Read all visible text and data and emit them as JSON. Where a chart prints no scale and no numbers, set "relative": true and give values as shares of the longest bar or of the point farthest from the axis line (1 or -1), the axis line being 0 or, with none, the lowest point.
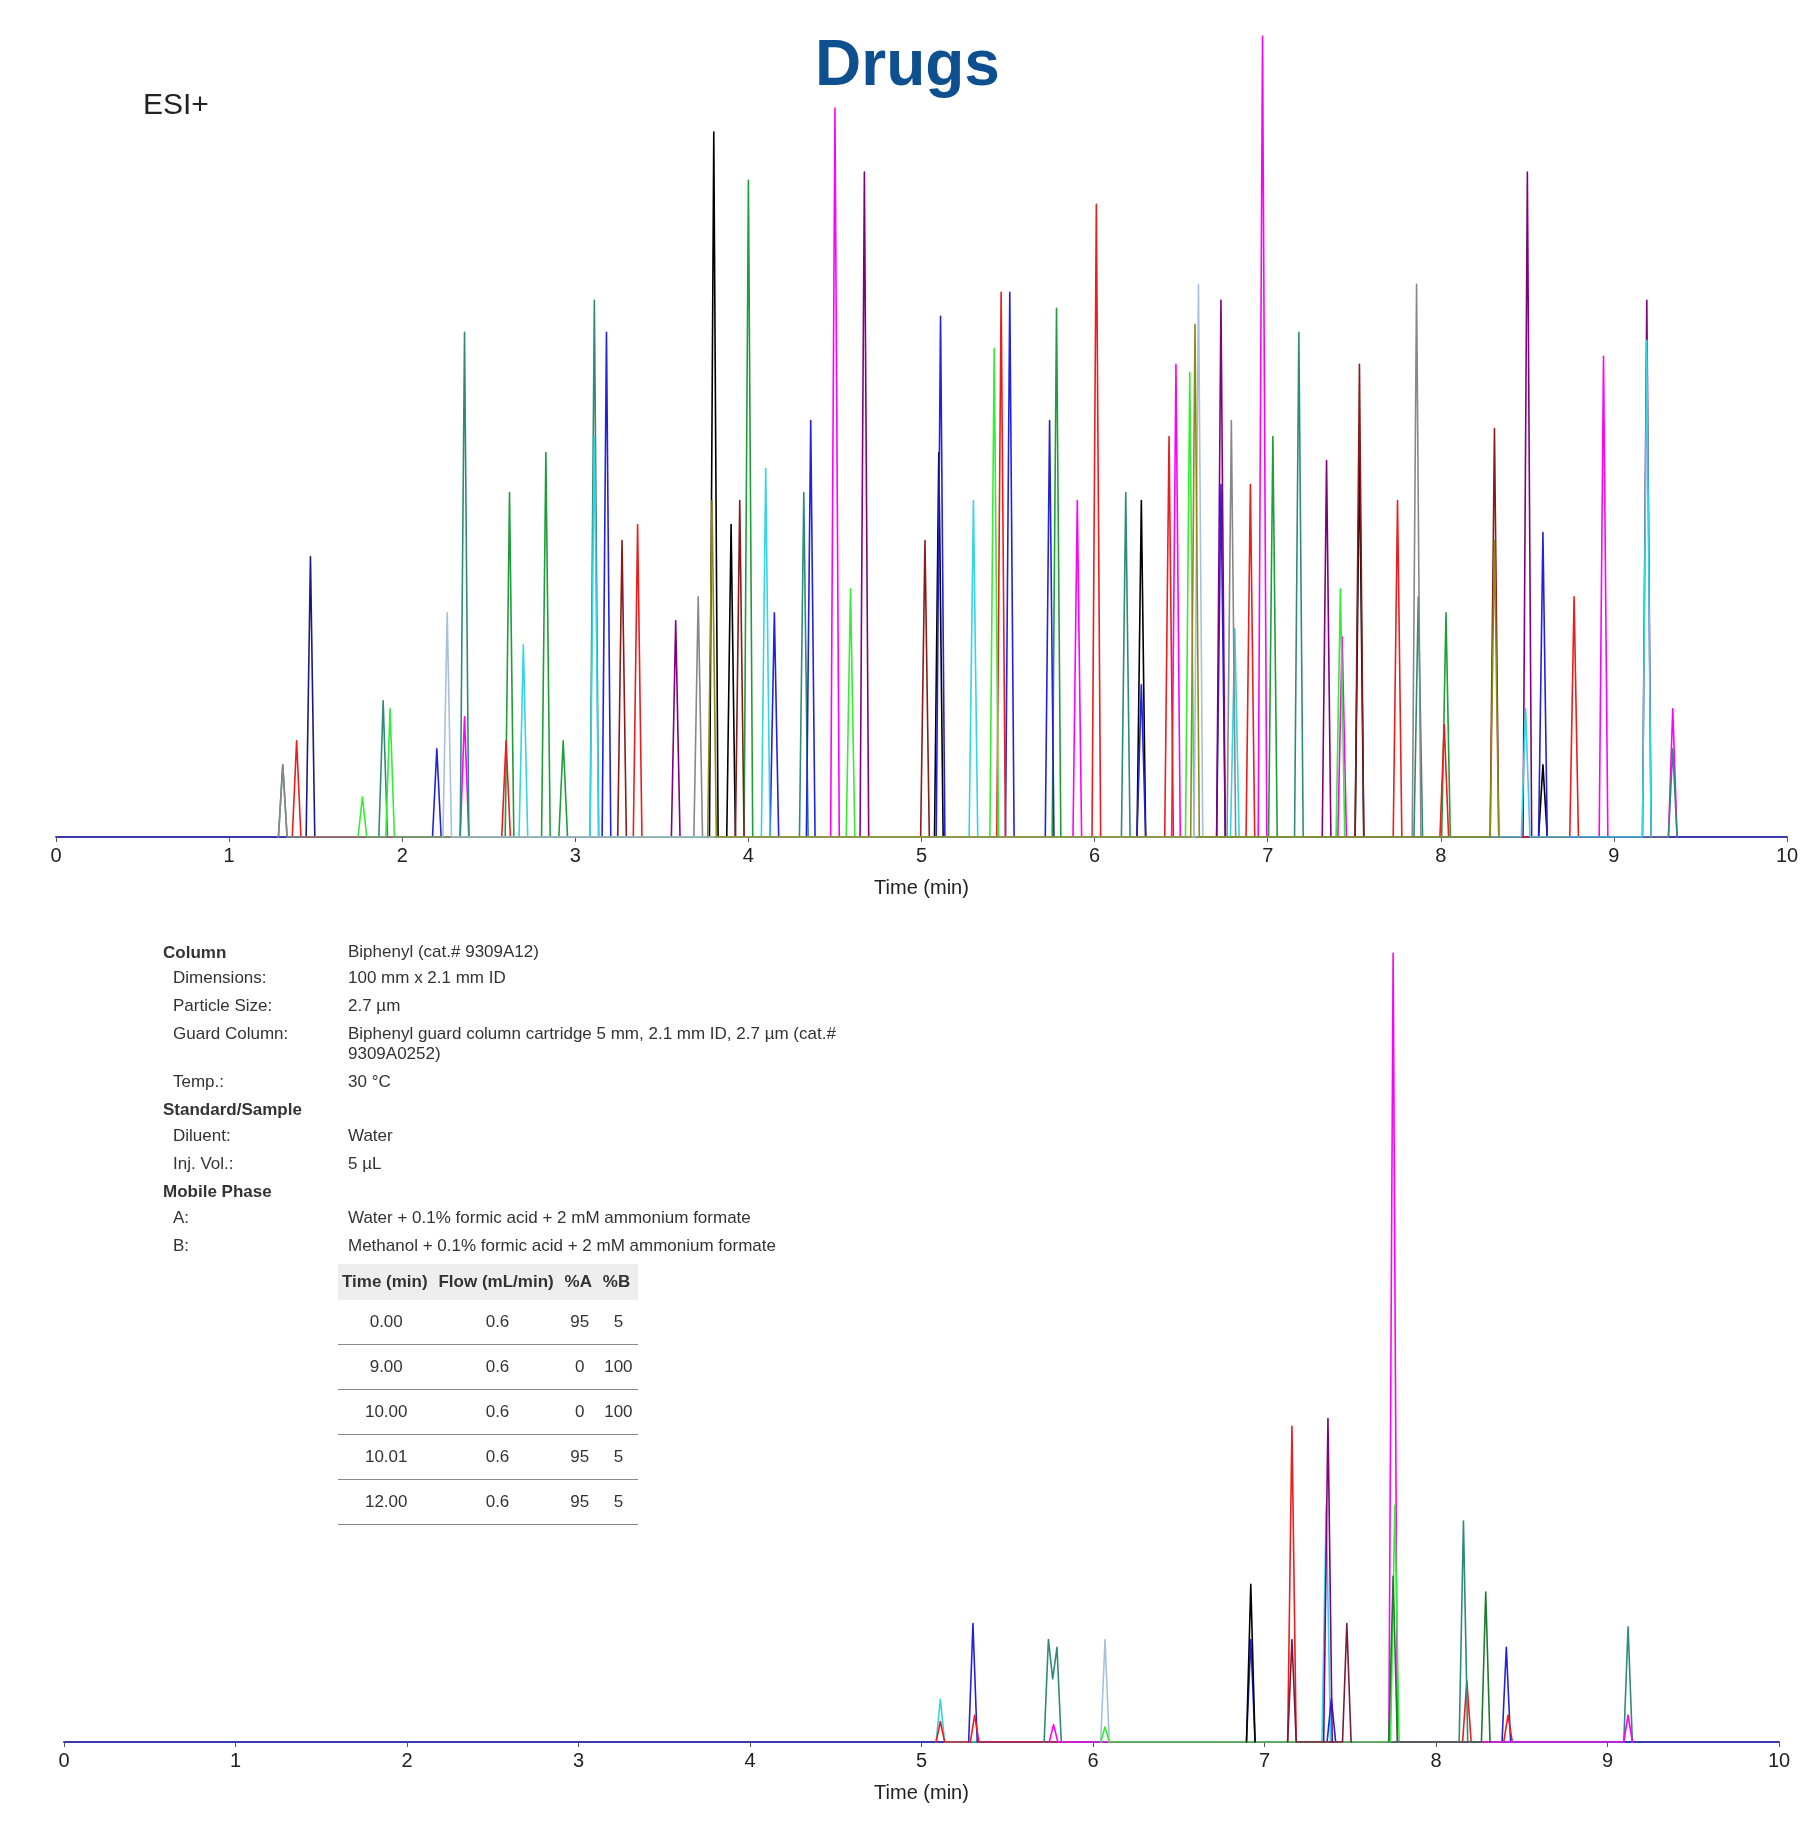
{
  "chart_data": [
    {
      "type": "line",
      "title": "Drugs",
      "relative": true,
      "xlabel": "Time (min)",
      "xlim": [
        0,
        10
      ],
      "xticks": [
        0,
        1,
        2,
        3,
        4,
        5,
        6,
        7,
        8,
        9,
        10
      ],
      "grid": false,
      "marker": "none",
      "line_style": "solid",
      "annotations": [
        "ESI+"
      ],
      "series": [
        {
          "color": "#ff00ff",
          "x": [
            2.335,
            2.36,
            2.385,
            4.475,
            4.5,
            4.525,
            5.875,
            5.9,
            5.925,
            6.445,
            6.47,
            6.495,
            6.945,
            6.97,
            6.995,
            7.405,
            7.43,
            7.455,
            8.915,
            8.94,
            8.965,
            9.315,
            9.34,
            9.365
          ],
          "values": [
            0,
            0.15,
            0,
            0,
            0.91,
            0,
            0,
            0.42,
            0,
            0,
            0.59,
            0,
            0,
            1,
            0,
            0,
            0.25,
            0,
            0,
            0.6,
            0,
            0,
            0.16,
            0
          ]
        },
        {
          "color": "#000000",
          "x": [
            3.775,
            3.8,
            3.825,
            3.875,
            3.9,
            3.925,
            5.075,
            5.1,
            5.125,
            6.245,
            6.27,
            6.295,
            7.505,
            7.53,
            7.555,
            8.565,
            8.59,
            8.615
          ],
          "values": [
            0,
            0.88,
            0,
            0,
            0.39,
            0,
            0,
            0.48,
            0,
            0,
            0.42,
            0,
            0,
            0.48,
            0,
            0,
            0.09,
            0
          ]
        },
        {
          "color": "#1e9e3a",
          "x": [
            2.595,
            2.62,
            2.645,
            2.805,
            2.83,
            2.855,
            2.905,
            2.93,
            2.955,
            3.975,
            4,
            4.025,
            5.755,
            5.78,
            5.805,
            7.005,
            7.03,
            7.055,
            8.005,
            8.03,
            8.055
          ],
          "values": [
            0,
            0.43,
            0,
            0,
            0.48,
            0,
            0,
            0.12,
            0,
            0,
            0.82,
            0,
            0,
            0.66,
            0,
            0,
            0.5,
            0,
            0,
            0.28,
            0
          ]
        },
        {
          "color": "#2e8b7a",
          "x": [
            1.285,
            1.31,
            1.335,
            1.865,
            1.89,
            1.915,
            2.335,
            2.36,
            2.385,
            3.085,
            3.11,
            3.135,
            4.295,
            4.32,
            4.345,
            6.155,
            6.18,
            6.205,
            7.155,
            7.18,
            7.205,
            7.845,
            7.87,
            7.895,
            9.315,
            9.34,
            9.365
          ],
          "values": [
            0,
            0.09,
            0,
            0,
            0.17,
            0,
            0,
            0.63,
            0,
            0,
            0.67,
            0,
            0,
            0.43,
            0,
            0,
            0.43,
            0,
            0,
            0.63,
            0,
            0,
            0.3,
            0,
            0,
            0.11,
            0
          ]
        },
        {
          "color": "#2222dd",
          "x": [
            2.175,
            2.2,
            2.225,
            3.155,
            3.18,
            3.205,
            4.125,
            4.15,
            4.175,
            4.335,
            4.36,
            4.385,
            5.085,
            5.11,
            5.135,
            5.485,
            5.51,
            5.535,
            5.715,
            5.74,
            5.765,
            6.245,
            6.27,
            6.295,
            6.705,
            6.73,
            6.755,
            8.565,
            8.59,
            8.615
          ],
          "values": [
            0,
            0.11,
            0,
            0,
            0.63,
            0,
            0,
            0.28,
            0,
            0,
            0.52,
            0,
            0,
            0.65,
            0,
            0,
            0.68,
            0,
            0,
            0.52,
            0,
            0,
            0.19,
            0,
            0,
            0.44,
            0,
            0,
            0.38,
            0
          ]
        },
        {
          "color": "#1a1a80",
          "x": [
            1.445,
            1.47,
            1.495
          ],
          "values": [
            0,
            0.35,
            0
          ]
        },
        {
          "color": "#800080",
          "x": [
            3.555,
            3.58,
            3.605,
            4.645,
            4.67,
            4.695,
            6.705,
            6.73,
            6.755,
            7.315,
            7.34,
            7.365,
            8.475,
            8.5,
            8.525,
            9.165,
            9.19,
            9.215
          ],
          "values": [
            0,
            0.27,
            0,
            0,
            0.83,
            0,
            0,
            0.67,
            0,
            0,
            0.47,
            0,
            0,
            0.83,
            0,
            0,
            0.67,
            0
          ]
        },
        {
          "color": "#ee1c1c",
          "x": [
            1.365,
            1.39,
            1.415,
            2.575,
            2.6,
            2.625,
            3.335,
            3.36,
            3.385,
            5.435,
            5.46,
            5.485,
            5.985,
            6.01,
            6.035,
            6.405,
            6.43,
            6.455,
            6.875,
            6.9,
            6.925,
            7.725,
            7.75,
            7.775,
            7.995,
            8.02,
            8.045,
            8.745,
            8.77,
            8.795
          ],
          "values": [
            0,
            0.12,
            0,
            0,
            0.12,
            0,
            0,
            0.39,
            0,
            0,
            0.68,
            0,
            0,
            0.79,
            0,
            0,
            0.5,
            0,
            0,
            0.44,
            0,
            0,
            0.42,
            0,
            0,
            0.14,
            0,
            0,
            0.3,
            0
          ]
        },
        {
          "color": "#8b1a1a",
          "x": [
            3.245,
            3.27,
            3.295,
            3.925,
            3.95,
            3.975,
            4.995,
            5.02,
            5.045,
            7.505,
            7.53,
            7.555,
            8.285,
            8.31,
            8.335
          ],
          "values": [
            0,
            0.37,
            0,
            0,
            0.42,
            0,
            0,
            0.37,
            0,
            0,
            0.59,
            0,
            0,
            0.51,
            0
          ]
        },
        {
          "color": "#33d6e6",
          "x": [
            2.675,
            2.7,
            2.725,
            3.085,
            3.11,
            3.135,
            4.075,
            4.1,
            4.125,
            5.275,
            5.3,
            5.325,
            6.785,
            6.81,
            6.835,
            8.465,
            8.49,
            8.515,
            9.165,
            9.19,
            9.215
          ],
          "values": [
            0,
            0.24,
            0,
            0,
            0.5,
            0,
            0,
            0.46,
            0,
            0,
            0.42,
            0,
            0,
            0.26,
            0,
            0,
            0.16,
            0,
            0,
            0.62,
            0
          ]
        },
        {
          "color": "#33ee33",
          "x": [
            1.745,
            1.77,
            1.795,
            1.905,
            1.93,
            1.955,
            4.565,
            4.59,
            4.615,
            5.395,
            5.42,
            5.445,
            6.525,
            6.55,
            6.575,
            7.395,
            7.42,
            7.445
          ],
          "values": [
            0,
            0.05,
            0,
            0,
            0.16,
            0,
            0,
            0.31,
            0,
            0,
            0.61,
            0,
            0,
            0.58,
            0,
            0,
            0.31,
            0
          ]
        },
        {
          "color": "#888888",
          "x": [
            1.285,
            1.31,
            1.335,
            3.685,
            3.71,
            3.735,
            6.765,
            6.79,
            6.815,
            7.835,
            7.86,
            7.885
          ],
          "values": [
            0,
            0.09,
            0,
            0,
            0.3,
            0,
            0,
            0.52,
            0,
            0,
            0.69,
            0
          ]
        },
        {
          "color": "#a8c0dc",
          "x": [
            2.235,
            2.26,
            2.285,
            6.575,
            6.6,
            6.625
          ],
          "values": [
            0,
            0.28,
            0,
            0,
            0.69,
            0
          ]
        },
        {
          "color": "#8b8b1a",
          "x": [
            3.765,
            3.79,
            3.815,
            6.555,
            6.58,
            6.605,
            8.285,
            8.31,
            8.335
          ],
          "values": [
            0,
            0.42,
            0,
            0,
            0.64,
            0,
            0,
            0.37,
            0
          ]
        }
      ]
    },
    {
      "type": "other",
      "title": "Column",
      "annotations": [
        "Dimensions:",
        "100 mm x 2.1 mm ID",
        "Particle Size:",
        "2.7 µm",
        "Guard Column:",
        "Biphenyl guard column cartridge 5 mm, 2.1 mm ID, 2.7 µm (cat.# 9309A0252)",
        "Temp.:",
        "30 °C"
      ],
      "subtitle": "Biphenyl (cat.# 9309A12)"
    },
    {
      "type": "other",
      "title": "Standard/Sample",
      "annotations": [
        "Diluent:",
        "Water",
        "Inj. Vol.:",
        "5 µL"
      ]
    },
    {
      "type": "other",
      "title": "Mobile Phase",
      "annotations": [
        "A:",
        "Water + 0.1% formic acid + 2 mM ammonium formate",
        "B:",
        "Methanol + 0.1% formic acid + 2 mM ammonium formate"
      ]
    },
    {
      "type": "other",
      "categories": [
        "Time (min)",
        "Flow (mL/min)",
        "%A",
        "%B"
      ],
      "annotations": [
        "0.00",
        "0.6",
        "95",
        "5",
        "9.00",
        "0.6",
        "0",
        "100",
        "10.00",
        "0.6",
        "0",
        "100",
        "10.01",
        "0.6",
        "95",
        "5",
        "12.00",
        "0.6",
        "95",
        "5"
      ]
    },
    {
      "type": "line",
      "relative": true,
      "xlabel": "Time (min)",
      "xlim": [
        0,
        10
      ],
      "xticks": [
        0,
        1,
        2,
        3,
        4,
        5,
        6,
        7,
        8,
        9,
        10
      ],
      "grid": false,
      "marker": "none",
      "line_style": "solid",
      "series": [
        {
          "color": "#33d6e6",
          "x": [
            5.085,
            5.11,
            5.135,
            7.335,
            7.36,
            7.385
          ],
          "values": [
            0,
            0.054,
            0,
            0,
            0.3,
            0
          ]
        },
        {
          "color": "#2222dd",
          "x": [
            5.275,
            5.3,
            5.325,
            6.895,
            6.92,
            6.945,
            7.365,
            7.39,
            7.415,
            8.385,
            8.41,
            8.435
          ],
          "values": [
            0,
            0.15,
            0,
            0,
            0.13,
            0,
            0,
            0.055,
            0,
            0,
            0.12,
            0
          ]
        },
        {
          "color": "#ee1c1c",
          "x": [
            5.085,
            5.11,
            5.135,
            5.285,
            5.31,
            5.335,
            7.135,
            7.16,
            7.185,
            8.155,
            8.18,
            8.205,
            8.395,
            8.42,
            8.445
          ],
          "values": [
            0,
            0.026,
            0,
            0,
            0.034,
            0,
            0,
            0.4,
            0,
            0,
            0.077,
            0,
            0,
            0.034,
            0
          ]
        },
        {
          "color": "#2e8b7a",
          "x": [
            5.715,
            5.74,
            5.765,
            5.79,
            5.815,
            8.135,
            8.16,
            8.185,
            9.095,
            9.12,
            9.145
          ],
          "values": [
            0,
            0.13,
            0.08,
            0.12,
            0,
            0,
            0.28,
            0,
            0,
            0.146,
            0
          ]
        },
        {
          "color": "#ff00ff",
          "x": [
            5.745,
            5.77,
            5.795,
            7.725,
            7.75,
            7.775,
            9.095,
            9.12,
            9.145
          ],
          "values": [
            0,
            0.022,
            0,
            0,
            1,
            0,
            0,
            0.034,
            0
          ]
        },
        {
          "color": "#a8c0dc",
          "x": [
            6.045,
            6.07,
            6.095
          ],
          "values": [
            0,
            0.13,
            0
          ]
        },
        {
          "color": "#33ee33",
          "x": [
            6.045,
            6.07,
            6.095,
            7.735,
            7.76,
            7.785
          ],
          "values": [
            0,
            0.019,
            0,
            0,
            0.3,
            0
          ]
        },
        {
          "color": "#1e7a2e",
          "x": [
            7.725,
            7.75,
            7.775,
            8.265,
            8.29,
            8.315
          ],
          "values": [
            0,
            0.21,
            0,
            0,
            0.19,
            0
          ]
        },
        {
          "color": "#000000",
          "x": [
            6.895,
            6.92,
            6.945
          ],
          "values": [
            0,
            0.2,
            0
          ]
        },
        {
          "color": "#800080",
          "x": [
            7.345,
            7.37,
            7.395
          ],
          "values": [
            0,
            0.41,
            0
          ]
        },
        {
          "color": "#7a1a3a",
          "x": [
            7.135,
            7.16,
            7.185,
            7.455,
            7.48,
            7.505
          ],
          "values": [
            0,
            0.13,
            0,
            0,
            0.15,
            0
          ]
        }
      ]
    }
  ]
}
